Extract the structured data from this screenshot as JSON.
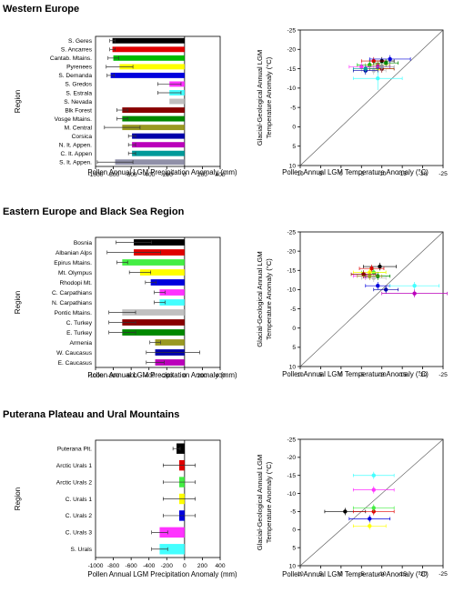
{
  "sections": [
    {
      "title": "Western Europe",
      "bar_chart": {
        "type": "bar",
        "orientation": "horizontal",
        "ylabel": "Region",
        "xlabel": "Pollen Annual LGM Precipitation Anomaly (mm)",
        "xlim": [
          -1000,
          400
        ],
        "xticks": [
          -1000,
          -800,
          -600,
          -400,
          -200,
          0,
          200,
          400
        ],
        "categories": [
          "S. Geres",
          "S. Ancarres",
          "Cantab. Mtains.",
          "Pyrenees",
          "S. Demanda",
          "S. Gredos",
          "S. Estrala",
          "S. Nevada",
          "Blk Forest",
          "Vosge Mtains.",
          "M. Central",
          "Corsica",
          "N. It. Appen.",
          "C. It. Appen",
          "S. It. Appen."
        ],
        "values": [
          -810,
          -810,
          -800,
          -730,
          -830,
          -170,
          -170,
          -170,
          -700,
          -700,
          -700,
          -590,
          -590,
          -590,
          -780
        ],
        "err_minus": [
          30,
          30,
          60,
          150,
          40,
          130,
          130,
          0,
          60,
          60,
          200,
          40,
          40,
          40,
          200
        ],
        "err_plus": [
          30,
          30,
          60,
          150,
          40,
          130,
          130,
          0,
          60,
          60,
          200,
          40,
          40,
          40,
          200
        ],
        "colors": [
          "#000000",
          "#e00000",
          "#00bb00",
          "#ffff00",
          "#0000dd",
          "#ff33ff",
          "#44ffff",
          "#c0c0c0",
          "#880000",
          "#008800",
          "#999922",
          "#0000aa",
          "#bb00bb",
          "#009999",
          "#9090a8"
        ]
      },
      "scatter_chart": {
        "type": "scatter",
        "xlabel": "Pollen Annual LGM Temperature Anomaly (°C)",
        "ylabel": "Glacial-Geological Annual LGM Temperature Anomaly (°C)",
        "xlim": [
          10,
          -25
        ],
        "ylim": [
          10,
          -25
        ],
        "xticks": [
          10,
          5,
          0,
          -5,
          -10,
          -15,
          -20,
          -25
        ],
        "yticks": [
          10,
          5,
          0,
          -5,
          -10,
          -15,
          -20,
          -25
        ],
        "points": [
          {
            "x": -10,
            "y": -17,
            "xerr": 3,
            "yerr": 1,
            "color": "#000000"
          },
          {
            "x": -8,
            "y": -17,
            "xerr": 3,
            "yerr": 1,
            "color": "#e00000"
          },
          {
            "x": -7,
            "y": -16,
            "xerr": 3,
            "yerr": 1,
            "color": "#00bb00"
          },
          {
            "x": -9,
            "y": -15,
            "xerr": 4,
            "yerr": 1,
            "color": "#ffff00"
          },
          {
            "x": -12,
            "y": -17.5,
            "xerr": 5,
            "yerr": 1,
            "color": "#0000dd"
          },
          {
            "x": -5,
            "y": -15.5,
            "xerr": 3,
            "yerr": 1,
            "color": "#ff33ff"
          },
          {
            "x": -9,
            "y": -12.5,
            "xerr": 6,
            "yerr": 3,
            "color": "#44ffff"
          },
          {
            "x": -8,
            "y": -14.5,
            "xerr": 3,
            "yerr": 1,
            "color": "#c0c0c0"
          },
          {
            "x": -10,
            "y": -15,
            "xerr": 3,
            "yerr": 1,
            "color": "#880000"
          },
          {
            "x": -11,
            "y": -16.5,
            "xerr": 3,
            "yerr": 1,
            "color": "#008800"
          },
          {
            "x": -9,
            "y": -16,
            "xerr": 3,
            "yerr": 1,
            "color": "#999922"
          },
          {
            "x": -6,
            "y": -14.5,
            "xerr": 3,
            "yerr": 1,
            "color": "#0000aa"
          },
          {
            "x": -9,
            "y": -15.5,
            "xerr": 3,
            "yerr": 1,
            "color": "#bb00bb"
          },
          {
            "x": -6,
            "y": -15,
            "xerr": 3,
            "yerr": 1,
            "color": "#009999"
          },
          {
            "x": -10,
            "y": -15.5,
            "xerr": 3,
            "yerr": 1,
            "color": "#9090a8"
          }
        ]
      }
    },
    {
      "title": "Eastern Europe and Black Sea Region",
      "bar_chart": {
        "type": "bar",
        "orientation": "horizontal",
        "ylabel": "Region",
        "xlabel": "Pollen Annual LGM Precipitation Anomaly (mm)",
        "xlim": [
          -1000,
          400
        ],
        "xticks": [
          -1000,
          -800,
          -600,
          -400,
          -200,
          0,
          200,
          400
        ],
        "categories": [
          "Bosnia",
          "Albanian Alps",
          "Epirus Mtains.",
          "Mt. Olympus",
          "Rhodopi Mt.",
          "C. Carpathians",
          "N. Carpathians",
          "Pontic Mtains.",
          "C. Turkey",
          "E. Turkey",
          "Armenia",
          "W. Caucasus",
          "E. Caucasus"
        ],
        "values": [
          -570,
          -570,
          -700,
          -500,
          -380,
          -280,
          -280,
          -700,
          -700,
          -700,
          -330,
          -330,
          -330
        ],
        "err_minus": [
          200,
          300,
          60,
          120,
          60,
          60,
          60,
          150,
          150,
          150,
          60,
          100,
          100
        ],
        "err_plus": [
          200,
          300,
          60,
          120,
          60,
          60,
          60,
          150,
          150,
          150,
          60,
          500,
          100
        ],
        "colors": [
          "#000000",
          "#e00000",
          "#44ee44",
          "#ffff00",
          "#0000dd",
          "#ff33ff",
          "#44ffff",
          "#c0c0c0",
          "#880000",
          "#008800",
          "#999922",
          "#0000aa",
          "#bb00bb"
        ]
      },
      "scatter_chart": {
        "type": "scatter",
        "xlabel": "Pollen Annual LGM Temperature Anomaly (°C)",
        "ylabel": "Glacial-Geological Annual LGM Temperature Anomaly (°C)",
        "xlim": [
          10,
          -25
        ],
        "ylim": [
          10,
          -25
        ],
        "xticks": [
          10,
          5,
          0,
          -5,
          -10,
          -15,
          -20,
          -25
        ],
        "yticks": [
          10,
          5,
          0,
          -5,
          -10,
          -15,
          -20,
          -25
        ],
        "points": [
          {
            "x": -9.5,
            "y": -16,
            "xerr": 4,
            "yerr": 1,
            "color": "#000000"
          },
          {
            "x": -7.5,
            "y": -15.5,
            "xerr": 3,
            "yerr": 1,
            "color": "#e00000"
          },
          {
            "x": -8,
            "y": -14.5,
            "xerr": 3,
            "yerr": 1,
            "color": "#44ee44"
          },
          {
            "x": -7,
            "y": -14.5,
            "xerr": 4,
            "yerr": 1,
            "color": "#ffff00"
          },
          {
            "x": -9,
            "y": -11,
            "xerr": 3,
            "yerr": 1,
            "color": "#0000dd"
          },
          {
            "x": -6,
            "y": -13.5,
            "xerr": 3,
            "yerr": 1,
            "color": "#ff33ff"
          },
          {
            "x": -18,
            "y": -11,
            "xerr": 6,
            "yerr": 1,
            "color": "#44ffff"
          },
          {
            "x": -8,
            "y": -13,
            "xerr": 3,
            "yerr": 1,
            "color": "#c0c0c0"
          },
          {
            "x": -5.5,
            "y": -14,
            "xerr": 3,
            "yerr": 1,
            "color": "#880000"
          },
          {
            "x": -9,
            "y": -13.5,
            "xerr": 3,
            "yerr": 1,
            "color": "#008800"
          },
          {
            "x": -7,
            "y": -13.5,
            "xerr": 3,
            "yerr": 1,
            "color": "#999922"
          },
          {
            "x": -11,
            "y": -10,
            "xerr": 3,
            "yerr": 1,
            "color": "#0000aa"
          },
          {
            "x": -18,
            "y": -9,
            "xerr": 8,
            "yerr": 1,
            "color": "#bb00bb"
          }
        ]
      }
    },
    {
      "title": "Puterana Plateau and Ural Mountains",
      "bar_chart": {
        "type": "bar",
        "orientation": "horizontal",
        "ylabel": "Region",
        "xlabel": "Pollen Annual LGM Precipitation Anomaly (mm)",
        "xlim": [
          -1000,
          400
        ],
        "xticks": [
          -1000,
          -800,
          -600,
          -400,
          -200,
          0,
          200,
          400
        ],
        "categories": [
          "Puterana Plt.",
          "Arctic Urals 1",
          "Arctic Urals 2",
          "C. Urals 1",
          "C. Urals 2",
          "C. Urals 3",
          "S. Urals"
        ],
        "values": [
          -90,
          -60,
          -60,
          -60,
          -60,
          -280,
          -280
        ],
        "err_minus": [
          40,
          180,
          180,
          180,
          180,
          90,
          90
        ],
        "err_plus": [
          40,
          180,
          180,
          180,
          180,
          90,
          90
        ],
        "colors": [
          "#000000",
          "#e00000",
          "#44ee44",
          "#ffff00",
          "#0000dd",
          "#ff33ff",
          "#44ffff"
        ]
      },
      "scatter_chart": {
        "type": "scatter",
        "xlabel": "Pollen Annual LGM Temperature Anomaly (°C)",
        "ylabel": "Glacial-Geological Annual LGM Temperature Anomaly (°C)",
        "xlim": [
          10,
          -25
        ],
        "ylim": [
          10,
          -25
        ],
        "xticks": [
          10,
          5,
          0,
          -5,
          -10,
          -15,
          -20,
          -25
        ],
        "yticks": [
          10,
          5,
          0,
          -5,
          -10,
          -15,
          -20,
          -25
        ],
        "points": [
          {
            "x": -1,
            "y": -5,
            "xerr": 5,
            "yerr": 1,
            "color": "#000000"
          },
          {
            "x": -8,
            "y": -5,
            "xerr": 5,
            "yerr": 1,
            "color": "#e00000"
          },
          {
            "x": -8,
            "y": -6,
            "xerr": 5,
            "yerr": 1,
            "color": "#44ee44"
          },
          {
            "x": -7,
            "y": -1,
            "xerr": 4,
            "yerr": 1,
            "color": "#ffff00"
          },
          {
            "x": -7,
            "y": -3,
            "xerr": 5,
            "yerr": 1,
            "color": "#0000dd"
          },
          {
            "x": -8,
            "y": -11,
            "xerr": 5,
            "yerr": 1,
            "color": "#ff33ff"
          },
          {
            "x": -8,
            "y": -15,
            "xerr": 5,
            "yerr": 1,
            "color": "#44ffff"
          }
        ]
      }
    }
  ]
}
